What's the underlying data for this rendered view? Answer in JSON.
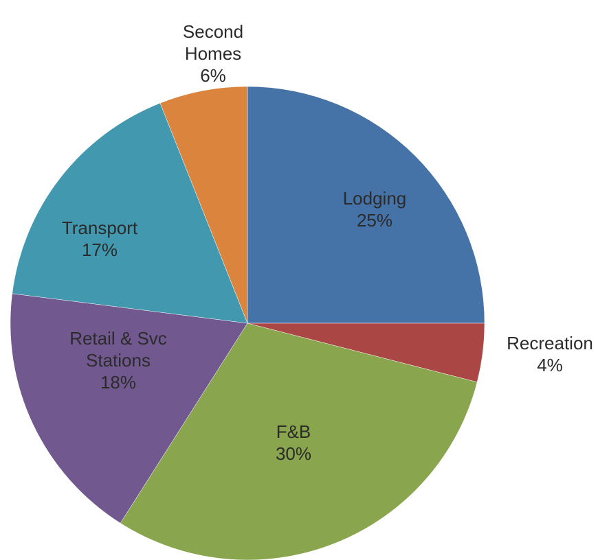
{
  "chart_data": {
    "type": "pie",
    "categories": [
      "Lodging",
      "Recreation",
      "F&B",
      "Retail & Svc Stations",
      "Transport",
      "Second Homes"
    ],
    "values": [
      25,
      4,
      30,
      18,
      17,
      6
    ],
    "value_labels": [
      "25%",
      "4%",
      "30%",
      "18%",
      "17%",
      "6%"
    ],
    "colors": [
      "#4572a7",
      "#aa4643",
      "#89a54e",
      "#71588f",
      "#4198af",
      "#db843d"
    ]
  }
}
